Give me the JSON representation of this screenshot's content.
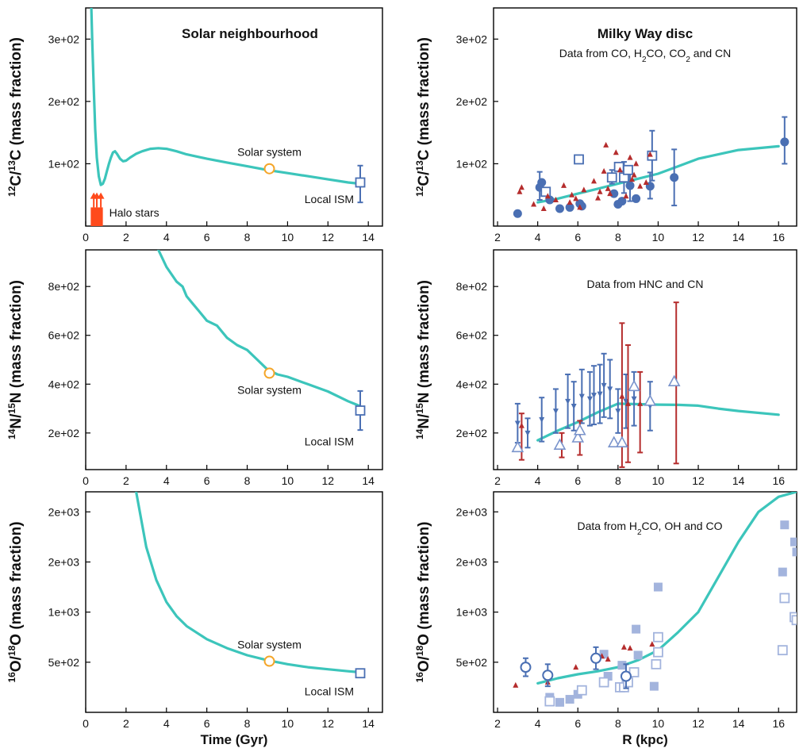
{
  "chart_data": [
    {
      "id": "p1",
      "type": "line",
      "title": "Solar neighbourhood",
      "subtitle": "",
      "ylabel": {
        "sup1": "12",
        "el1": "C/",
        "sup2": "13",
        "el2": "C",
        "rest": " (mass fraction)"
      },
      "xlabel": "",
      "xlim": [
        0,
        14.7
      ],
      "ylim": [
        0,
        350
      ],
      "xticks": [
        "0",
        "2",
        "4",
        "6",
        "8",
        "10",
        "12",
        "14"
      ],
      "xtick_values": [
        0,
        2,
        4,
        6,
        8,
        10,
        12,
        14
      ],
      "yticks": [
        "1e+02",
        "2e+02",
        "3e+02"
      ],
      "ytick_values": [
        100,
        200,
        300
      ],
      "model_color": "#3cc5bb",
      "model": {
        "x": [
          0.28,
          0.33,
          0.4,
          0.47,
          0.55,
          0.65,
          0.75,
          0.85,
          0.95,
          1.05,
          1.15,
          1.25,
          1.35,
          1.45,
          1.55,
          1.7,
          1.85,
          2.0,
          2.2,
          2.5,
          2.8,
          3.2,
          3.6,
          4.0,
          4.5,
          5.0,
          6.0,
          7.0,
          8.0,
          9.0,
          10.0,
          11.0,
          12.0,
          13.0,
          13.6
        ],
        "y": [
          350,
          290,
          220,
          155,
          110,
          80,
          66,
          68,
          76,
          88,
          100,
          110,
          118,
          120,
          116,
          108,
          104,
          105,
          110,
          116,
          120,
          124,
          125,
          124,
          120,
          115,
          108,
          102,
          96,
          90,
          85,
          80,
          75,
          70,
          68
        ]
      },
      "points": [
        {
          "label": "Solar system",
          "x": 9.1,
          "y": 92,
          "marker": "circle-open",
          "color": "#f4a62a",
          "label_dx": 0,
          "label_dy": -16
        },
        {
          "label": "Local ISM",
          "x": 13.6,
          "y": 70,
          "marker": "square-open",
          "color": "#4a6fb3",
          "err_lo": 32,
          "err_hi": 27,
          "label_dx": -8,
          "label_dy": 26,
          "anchor": "end"
        }
      ],
      "halo": {
        "label": "Halo stars",
        "x0": 0.25,
        "x1": 0.85,
        "y0": 0,
        "y1": 30,
        "arrows_x": [
          0.4,
          0.55,
          0.75
        ],
        "arrow_top": 54,
        "color": "#ff4a1c"
      }
    },
    {
      "id": "p2",
      "type": "scatter",
      "title": "Milky Way disc",
      "subtitle": "Data from CO, H_2CO, CO_2 and CN",
      "ylabel": {
        "sup1": "12",
        "el1": "C/",
        "sup2": "13",
        "el2": "C",
        "rest": " (mass fraction)"
      },
      "xlabel": "",
      "xlim": [
        1.8,
        16.9
      ],
      "ylim": [
        0,
        350
      ],
      "xticks": [
        "2",
        "4",
        "6",
        "8",
        "10",
        "12",
        "14",
        "16"
      ],
      "xtick_values": [
        2,
        4,
        6,
        8,
        10,
        12,
        14,
        16
      ],
      "yticks": [
        "1e+02",
        "2e+02",
        "3e+02"
      ],
      "ytick_values": [
        100,
        200,
        300
      ],
      "model_color": "#3cc5bb",
      "model": {
        "x": [
          4,
          5,
          6,
          7,
          8,
          9,
          10,
          11,
          12,
          13,
          14,
          16
        ],
        "y": [
          38,
          44,
          52,
          60,
          68,
          76,
          84,
          96,
          108,
          115,
          122,
          128
        ]
      },
      "series": [
        {
          "name": "",
          "marker": "circle",
          "color": "#4a6fb3",
          "x": [
            3.0,
            4.1,
            4.2,
            4.6,
            5.1,
            5.6,
            6.1,
            6.2,
            7.8,
            8.0,
            8.2,
            8.6,
            8.9,
            9.6,
            10.8,
            16.3
          ],
          "y": [
            20,
            62,
            70,
            42,
            28,
            30,
            36,
            32,
            52,
            35,
            40,
            65,
            44,
            64,
            78,
            135
          ],
          "err_lo": [
            0,
            20,
            0,
            0,
            0,
            0,
            0,
            0,
            0,
            0,
            0,
            25,
            0,
            20,
            45,
            35
          ],
          "err_hi": [
            0,
            25,
            0,
            0,
            0,
            0,
            0,
            0,
            0,
            0,
            0,
            30,
            0,
            22,
            45,
            40
          ]
        },
        {
          "name": "",
          "marker": "square-open",
          "color": "#4a6fb3",
          "x": [
            4.4,
            6.05,
            7.7,
            8.05,
            8.3,
            8.5,
            9.7
          ],
          "y": [
            55,
            107,
            78,
            95,
            78,
            90,
            113
          ],
          "err_lo": [
            0,
            0,
            10,
            0,
            25,
            0,
            40
          ],
          "err_hi": [
            0,
            0,
            12,
            0,
            25,
            0,
            40
          ]
        },
        {
          "name": "",
          "marker": "triangle",
          "color": "#b52d2d",
          "x": [
            3.1,
            3.2,
            3.8,
            4.3,
            4.5,
            4.9,
            5.3,
            5.6,
            5.7,
            5.9,
            6.1,
            6.3,
            6.8,
            7.0,
            7.1,
            7.3,
            7.5,
            7.6,
            7.9,
            8.1,
            8.4,
            8.6,
            8.7,
            8.8,
            9.1,
            9.4,
            9.6,
            7.4,
            8.9
          ],
          "y": [
            55,
            62,
            35,
            28,
            48,
            42,
            65,
            38,
            50,
            44,
            30,
            58,
            72,
            45,
            55,
            88,
            60,
            52,
            118,
            90,
            48,
            110,
            75,
            82,
            64,
            70,
            115,
            130,
            100
          ]
        }
      ]
    },
    {
      "id": "p3",
      "type": "line",
      "title": "",
      "subtitle": "",
      "ylabel": {
        "sup1": "14",
        "el1": "N/",
        "sup2": "15",
        "el2": "N",
        "rest": " (mass fraction)"
      },
      "xlabel": "",
      "xlim": [
        0,
        14.7
      ],
      "ylim": [
        50,
        950
      ],
      "xticks": [
        "0",
        "2",
        "4",
        "6",
        "8",
        "10",
        "12",
        "14"
      ],
      "xtick_values": [
        0,
        2,
        4,
        6,
        8,
        10,
        12,
        14
      ],
      "yticks": [
        "2e+02",
        "4e+02",
        "6e+02",
        "8e+02"
      ],
      "ytick_values": [
        200,
        400,
        600,
        800
      ],
      "model_color": "#3cc5bb",
      "model": {
        "x": [
          3.6,
          4.0,
          4.5,
          4.8,
          5.0,
          5.3,
          5.6,
          6.0,
          6.5,
          7.0,
          7.5,
          8.0,
          8.5,
          9.0,
          9.5,
          10.0,
          11.0,
          12.0,
          13.0,
          13.6
        ],
        "y": [
          950,
          880,
          820,
          800,
          760,
          730,
          700,
          660,
          640,
          590,
          560,
          540,
          500,
          460,
          440,
          430,
          400,
          370,
          330,
          310
        ]
      },
      "points": [
        {
          "label": "Solar system",
          "x": 9.1,
          "y": 445,
          "marker": "circle-open",
          "color": "#f4a62a",
          "label_dx": 0,
          "label_dy": 26
        },
        {
          "label": "Local ISM",
          "x": 13.6,
          "y": 292,
          "marker": "square-open",
          "color": "#4a6fb3",
          "err_lo": 80,
          "err_hi": 80,
          "label_dx": -8,
          "label_dy": 44,
          "anchor": "end"
        }
      ]
    },
    {
      "id": "p4",
      "type": "scatter",
      "title": "",
      "subtitle": "Data from HNC and CN",
      "ylabel": {
        "sup1": "14",
        "el1": "N/",
        "sup2": "15",
        "el2": "N",
        "rest": " (mass fraction)"
      },
      "xlabel": "",
      "xlim": [
        1.8,
        16.9
      ],
      "ylim": [
        50,
        950
      ],
      "xticks": [
        "2",
        "4",
        "6",
        "8",
        "10",
        "12",
        "14",
        "16"
      ],
      "xtick_values": [
        2,
        4,
        6,
        8,
        10,
        12,
        14,
        16
      ],
      "yticks": [
        "2e+02",
        "4e+02",
        "6e+02",
        "8e+02"
      ],
      "ytick_values": [
        200,
        400,
        600,
        800
      ],
      "model_color": "#3cc5bb",
      "model": {
        "x": [
          4,
          5,
          6,
          7,
          8,
          9,
          10,
          11,
          12,
          13,
          14,
          16
        ],
        "y": [
          170,
          210,
          245,
          285,
          320,
          318,
          316,
          315,
          312,
          300,
          290,
          275
        ]
      },
      "series": [
        {
          "name": "",
          "marker": "triangle-down",
          "color": "#4a6fb3",
          "x": [
            3.0,
            3.5,
            4.2,
            4.9,
            5.5,
            5.8,
            6.2,
            6.6,
            6.8,
            7.1,
            7.3,
            7.6,
            8.0,
            8.4,
            8.8,
            9.6
          ],
          "y": [
            240,
            200,
            255,
            290,
            330,
            310,
            350,
            340,
            355,
            360,
            395,
            380,
            290,
            330,
            340,
            310
          ],
          "err_lo": [
            80,
            60,
            90,
            90,
            110,
            100,
            110,
            110,
            120,
            120,
            130,
            120,
            90,
            110,
            110,
            100
          ],
          "err_hi": [
            80,
            60,
            90,
            90,
            110,
            100,
            110,
            110,
            120,
            120,
            130,
            120,
            90,
            110,
            110,
            100
          ]
        },
        {
          "name": "",
          "marker": "triangle",
          "color": "#b52d2d",
          "x": [
            3.2,
            5.2,
            6.1,
            8.2,
            8.5,
            9.1,
            10.9
          ],
          "y": [
            230,
            150,
            180,
            350,
            320,
            320,
            405
          ],
          "err_lo": [
            140,
            50,
            70,
            290,
            240,
            200,
            330
          ],
          "err_hi": [
            50,
            50,
            70,
            300,
            240,
            130,
            330
          ]
        },
        {
          "name": "",
          "marker": "triangle-open",
          "color": "#7a94cc",
          "x": [
            3.0,
            5.1,
            6.0,
            6.1,
            7.8,
            8.2,
            8.8,
            9.6,
            10.8
          ],
          "y": [
            140,
            150,
            180,
            210,
            160,
            160,
            390,
            330,
            410
          ]
        }
      ]
    },
    {
      "id": "p5",
      "type": "line",
      "title": "",
      "subtitle": "",
      "ylabel": {
        "sup1": "16",
        "el1": "O/",
        "sup2": "18",
        "el2": "O",
        "rest": " (mass fraction)"
      },
      "xlabel": "Time (Gyr)",
      "xlim": [
        0,
        14.7
      ],
      "ylim": [
        0,
        2200
      ],
      "xticks": [
        "0",
        "2",
        "4",
        "6",
        "8",
        "10",
        "12",
        "14"
      ],
      "xtick_values": [
        0,
        2,
        4,
        6,
        8,
        10,
        12,
        14
      ],
      "yticks": [
        "5e+02",
        "1e+03",
        "2e+03",
        "2e+03"
      ],
      "ytick_values": [
        500,
        1000,
        1500,
        2000
      ],
      "model_color": "#3cc5bb",
      "model": {
        "x": [
          2.5,
          3.0,
          3.5,
          4.0,
          4.5,
          5.0,
          6.0,
          7.0,
          8.0,
          9.0,
          10.0,
          11.0,
          12.0,
          13.0,
          13.6
        ],
        "y": [
          2200,
          1650,
          1320,
          1100,
          960,
          860,
          730,
          640,
          570,
          520,
          480,
          450,
          430,
          410,
          400
        ]
      },
      "points": [
        {
          "label": "Solar system",
          "x": 9.1,
          "y": 510,
          "marker": "circle-open",
          "color": "#f4a62a",
          "label_dx": 0,
          "label_dy": -16
        },
        {
          "label": "Local ISM",
          "x": 13.6,
          "y": 390,
          "marker": "square-open",
          "color": "#4a6fb3",
          "err_lo": 40,
          "err_hi": 40,
          "label_dx": -8,
          "label_dy": 28,
          "anchor": "end"
        }
      ]
    },
    {
      "id": "p6",
      "type": "scatter",
      "title": "",
      "subtitle": "Data from H_2CO, OH and CO",
      "ylabel": {
        "sup1": "16",
        "el1": "O/",
        "sup2": "18",
        "el2": "O",
        "rest": " (mass fraction)"
      },
      "xlabel": "R (kpc)",
      "xlim": [
        1.8,
        16.9
      ],
      "ylim": [
        0,
        2200
      ],
      "xticks": [
        "2",
        "4",
        "6",
        "8",
        "10",
        "12",
        "14",
        "16"
      ],
      "xtick_values": [
        2,
        4,
        6,
        8,
        10,
        12,
        14,
        16
      ],
      "yticks": [
        "5e+02",
        "1e+03",
        "2e+03",
        "2e+03"
      ],
      "ytick_values": [
        500,
        1000,
        1500,
        2000
      ],
      "model_color": "#3cc5bb",
      "model": {
        "x": [
          4,
          5,
          6,
          7,
          8,
          9,
          10,
          11,
          12,
          13,
          14,
          15,
          16,
          16.9
        ],
        "y": [
          290,
          340,
          380,
          410,
          450,
          520,
          620,
          800,
          1000,
          1350,
          1700,
          2000,
          2150,
          2200
        ]
      },
      "series": [
        {
          "name": "",
          "marker": "square",
          "color": "#a3b4dd",
          "x": [
            4.6,
            5.1,
            5.6,
            6.0,
            7.3,
            7.5,
            8.2,
            8.4,
            8.9,
            9.0,
            9.8,
            10.0,
            16.2,
            16.3,
            16.8,
            16.9
          ],
          "y": [
            150,
            100,
            130,
            180,
            580,
            360,
            470,
            320,
            830,
            570,
            260,
            1250,
            1400,
            1870,
            1700,
            1600
          ]
        },
        {
          "name": "",
          "marker": "square-open",
          "color": "#a3b4dd",
          "x": [
            4.6,
            6.2,
            7.3,
            8.1,
            8.3,
            8.5,
            8.8,
            9.9,
            10.0,
            10.0,
            16.2,
            16.3,
            16.8,
            16.9
          ],
          "y": [
            110,
            220,
            300,
            250,
            250,
            300,
            400,
            480,
            600,
            750,
            620,
            1140,
            950,
            920
          ]
        },
        {
          "name": "",
          "marker": "triangle",
          "color": "#b52d2d",
          "x": [
            2.9,
            4.5,
            5.9,
            7.2,
            7.5,
            8.3,
            8.6,
            9.7
          ],
          "y": [
            270,
            300,
            450,
            560,
            530,
            650,
            640,
            680
          ]
        },
        {
          "name": "",
          "marker": "circle-open",
          "color": "#4a6fb3",
          "x": [
            3.4,
            4.5,
            6.9,
            8.4
          ],
          "y": [
            450,
            370,
            540,
            360
          ],
          "err_lo": [
            90,
            110,
            110,
            120
          ],
          "err_hi": [
            90,
            110,
            110,
            120
          ]
        }
      ]
    }
  ]
}
